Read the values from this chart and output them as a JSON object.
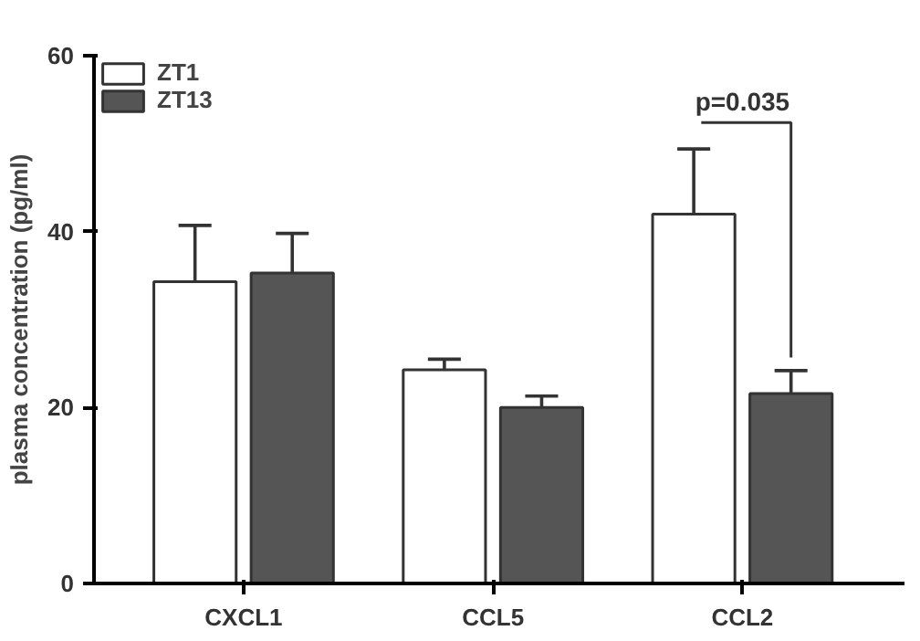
{
  "chart_data": {
    "type": "bar",
    "ylabel": "plasma concentration (pg/ml)",
    "categories": [
      "CXCL1",
      "CCL5",
      "CCL2"
    ],
    "series": [
      {
        "name": "ZT1",
        "color": "#ffffff",
        "values": [
          34.3,
          24.3,
          42.0
        ],
        "errors": [
          [
            34.3,
            40.7
          ],
          [
            24.3,
            25.5
          ],
          [
            42.0,
            49.4
          ]
        ]
      },
      {
        "name": "ZT13",
        "color": "#555555",
        "values": [
          35.3,
          20.0,
          21.6
        ],
        "errors": [
          [
            35.3,
            39.8
          ],
          [
            20.0,
            21.3
          ],
          [
            21.6,
            24.2
          ]
        ]
      }
    ],
    "ylim": [
      0,
      60
    ],
    "yticks": [
      0,
      20,
      40,
      60
    ],
    "grid": false,
    "legend": "top left",
    "annotations": [
      "p=0.035"
    ]
  }
}
